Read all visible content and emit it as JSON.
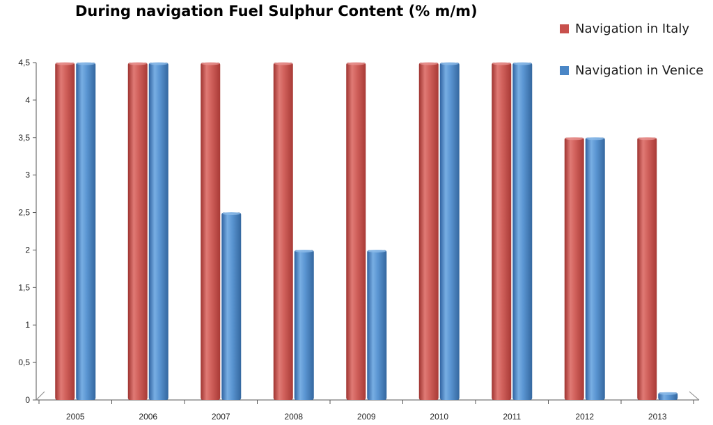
{
  "chart_data": {
    "type": "bar",
    "title": "During navigation Fuel Sulphur Content (% m/m)",
    "xlabel": "",
    "ylabel": "",
    "categories": [
      "2005",
      "2006",
      "2007",
      "2008",
      "2009",
      "2010",
      "2011",
      "2012",
      "2013"
    ],
    "series": [
      {
        "name": "Navigation in Italy",
        "color": "#c8504c",
        "values": [
          4.5,
          4.5,
          4.5,
          4.5,
          4.5,
          4.5,
          4.5,
          3.5,
          3.5
        ]
      },
      {
        "name": "Navigation in Venice",
        "color": "#4a86c6",
        "values": [
          4.5,
          4.5,
          2.5,
          2.0,
          2.0,
          4.5,
          4.5,
          3.5,
          0.1
        ]
      }
    ],
    "ylim": [
      0,
      4.5
    ],
    "yticks": [
      "0",
      "0,5",
      "1",
      "1,5",
      "2",
      "2,5",
      "3",
      "3,5",
      "4",
      "4,5"
    ],
    "grid": false,
    "legend_position": "top-right"
  }
}
